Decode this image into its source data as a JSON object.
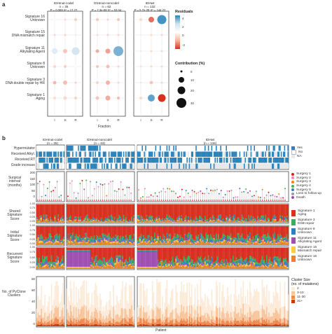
{
  "panel_a": {
    "letter": "a",
    "columns": [
      {
        "name": "IDHmut-codel",
        "n": "n = 25",
        "stat": "P = 0.069  X² = 17.27"
      },
      {
        "name": "IDHmut-noncodel",
        "n": "n = 62",
        "stat": "P = 7.3e-08  X² = 53.04"
      },
      {
        "name": "IDHwt",
        "n": "n = 132",
        "stat": "P = 5.7e-28  X² = 144.22"
      }
    ],
    "rows": [
      "Signature 16\nUnknown",
      "Signature 15\nDNA mismatch repair",
      "Signature 11\nAlkylating Agent",
      "Signature 8\nUnknown",
      "Signature 3\nDNA double repair by HR",
      "Signature 1\nAging"
    ],
    "xticks": [
      "I",
      "S",
      "R"
    ],
    "xlabel": "Fraction",
    "legend_residuals": {
      "title": "Residuals",
      "ticks": [
        "4",
        "2",
        "0",
        "-2"
      ]
    },
    "legend_contribution": {
      "title": "Contribution (%)",
      "ticks": [
        "0",
        "10",
        "20",
        "30"
      ]
    }
  },
  "panel_b": {
    "letter": "b",
    "groups": [
      {
        "name": "IDHmut-codel",
        "n": "(n = 25)"
      },
      {
        "name": "IDHmut-noncodel",
        "n": "(n = 63)"
      },
      {
        "name": "IDHwt",
        "n": "(n = 134)"
      }
    ],
    "track_labels": [
      "Hypermutator",
      "Received Alkyl.",
      "Received RT",
      "Grade increase"
    ],
    "track_legend": [
      "Yes",
      "No",
      "NA"
    ],
    "surgical_ylabel": "Surgical interval (months)",
    "surgical_ticks": [
      "200",
      "150",
      "100",
      "50",
      "0"
    ],
    "surgery_legend": [
      "Surgery 1",
      "Surgery 2",
      "Surgery 3",
      "Surgery 4",
      "Surgery 5",
      "Loss to follow-up",
      "Death"
    ],
    "sig_panels": [
      "Shared Signature Score",
      "Initial Signature Score",
      "Recurrent Signature Score"
    ],
    "sig_ticks": [
      "1.00",
      "0.75",
      "0.50",
      "0.25",
      "0.00"
    ],
    "sig_legend": [
      "Signature 1\nAging",
      "Signature 3\nDSB repair",
      "Signature 8\nUnknown",
      "Signature 11\nAlkylating Agent",
      "Signature 15\nMismatch repair",
      "Signature 16\nUnknown"
    ],
    "cluster_ylabel": "No. of PyClone Clusters",
    "cluster_ticks": [
      "80",
      "60",
      "40",
      "20",
      "0"
    ],
    "cluster_legend_title": "Cluster Size\n(no. of mutations)",
    "cluster_legend": [
      "2",
      "3-10",
      "11-30",
      "31+"
    ],
    "xlabel": "Patient"
  },
  "colors": {
    "blue": "#2b83ba",
    "sig1": "#d7301f",
    "sig3": "#41ab5d",
    "sig8": "#2c7fb8",
    "sig11": "#9e4fb0",
    "sig15": "#f4d03f",
    "sig16": "#e6862b"
  }
}
